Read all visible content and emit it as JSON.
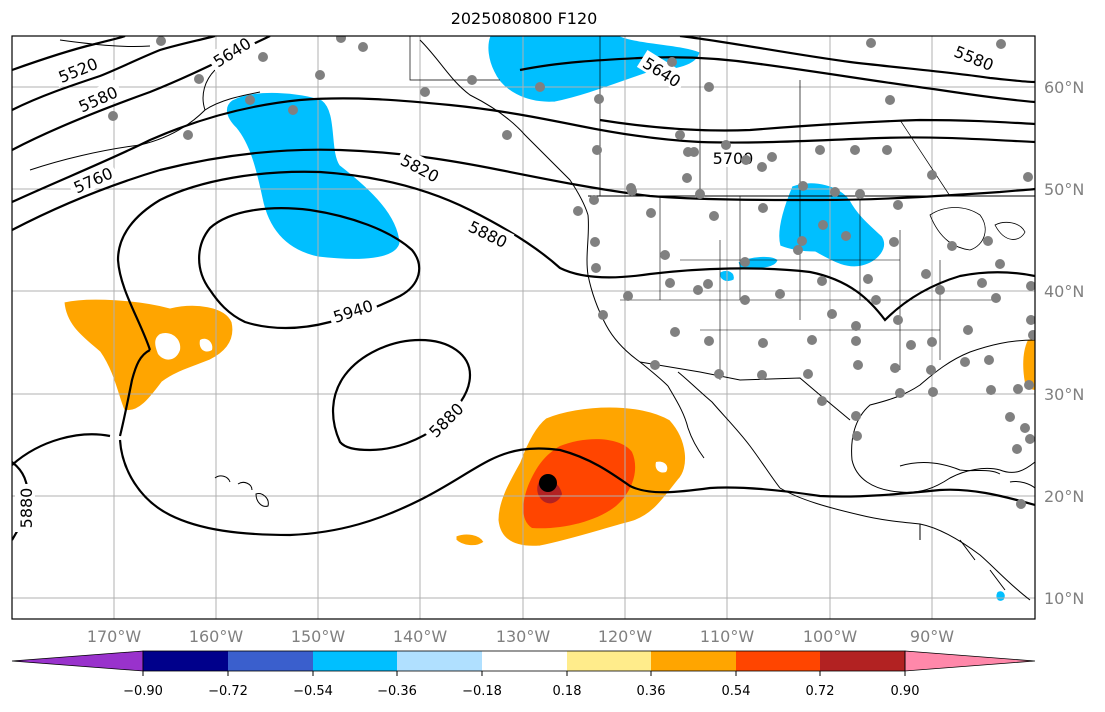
{
  "title": "2025080800 F120",
  "map": {
    "lon_ticks": [
      "170°W",
      "160°W",
      "150°W",
      "140°W",
      "130°W",
      "120°W",
      "110°W",
      "100°W",
      "90°W"
    ],
    "lat_ticks": [
      "60°N",
      "50°N",
      "40°N",
      "30°N",
      "20°N",
      "10°N"
    ],
    "gridlines": true,
    "contour_labels": [
      "5520",
      "5580",
      "5640",
      "5760",
      "5820",
      "5880",
      "5940",
      "5880",
      "5880",
      "5640",
      "5580",
      "5700"
    ],
    "point_marker_color": "#808080",
    "center_marker_color": "#000000"
  },
  "colorbar": {
    "tick_labels": [
      "−0.90",
      "−0.72",
      "−0.54",
      "−0.36",
      "−0.18",
      "0.18",
      "0.36",
      "0.54",
      "0.72",
      "0.90"
    ],
    "colors": [
      "#9932cc",
      "#00008b",
      "#3a5fcd",
      "#00bfff",
      "#b0e0ff",
      "#ffffff",
      "#ffec8b",
      "#ffa500",
      "#ff4500",
      "#b22222",
      "#ff88aa"
    ]
  },
  "fill_colors": {
    "negative_strong": "#00bfff",
    "positive_medium": "#ffa500",
    "positive_strong": "#ff4500",
    "positive_extreme": "#b22222"
  }
}
